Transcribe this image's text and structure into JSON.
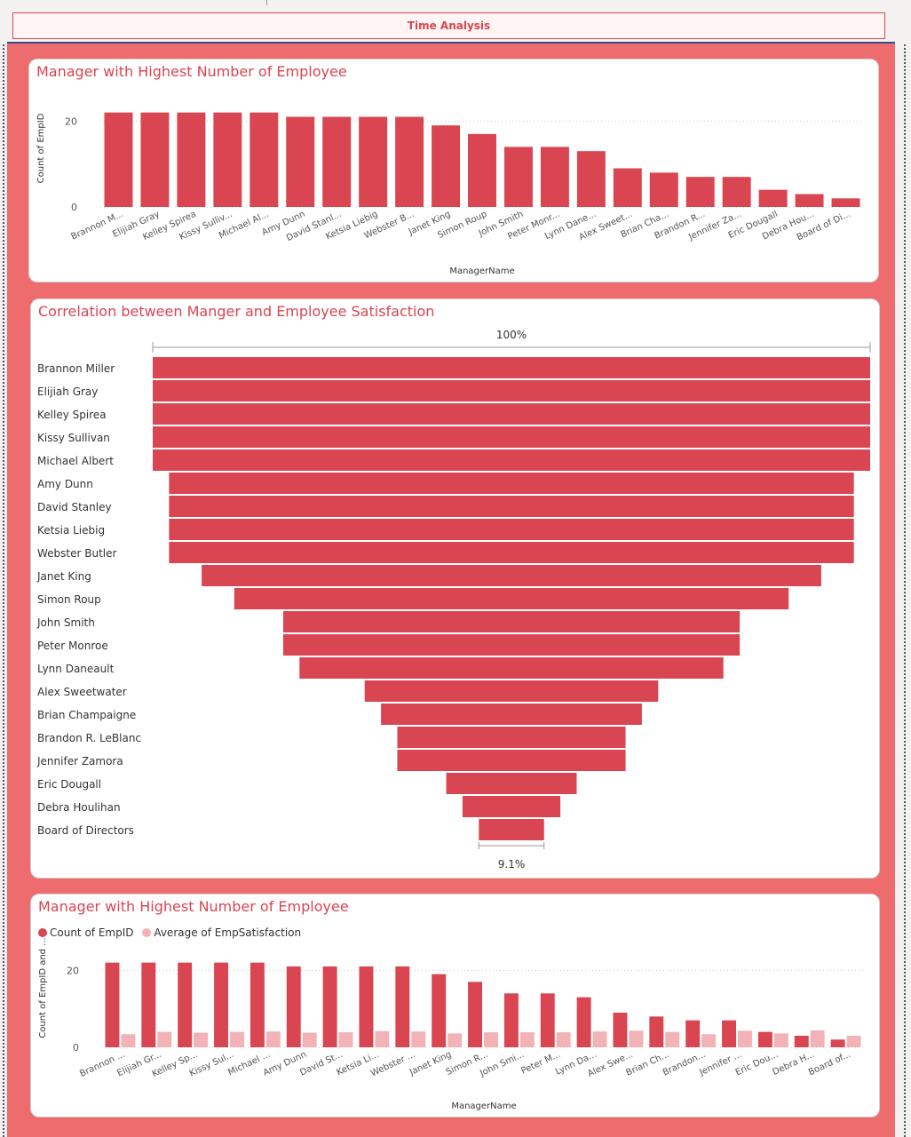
{
  "page": {
    "title": "Time Analysis"
  },
  "colors": {
    "primary": "#d94551",
    "secondary": "#f2b2b6",
    "accent": "#ee6b6e"
  },
  "chart_data": [
    {
      "type": "bar",
      "title": "Manager with Highest Number of Employee",
      "xlabel": "ManagerName",
      "ylabel": "Count of EmpID",
      "ylim": [
        0,
        24
      ],
      "yticks": [
        0,
        20
      ],
      "categories": [
        "Brannon M...",
        "Elijiah Gray",
        "Kelley Spirea",
        "Kissy Sulliv...",
        "Michael Al...",
        "Amy Dunn",
        "David Stanl...",
        "Ketsia Liebig",
        "Webster B...",
        "Janet King",
        "Simon Roup",
        "John Smith",
        "Peter Monr...",
        "Lynn Dane...",
        "Alex Sweet...",
        "Brian Cha...",
        "Brandon R...",
        "Jennifer Za...",
        "Eric Dougall",
        "Debra Hou...",
        "Board of Di..."
      ],
      "values": [
        22,
        22,
        22,
        22,
        22,
        21,
        21,
        21,
        21,
        19,
        17,
        14,
        14,
        13,
        9,
        8,
        7,
        7,
        4,
        3,
        2
      ],
      "grid": true
    },
    {
      "type": "funnel",
      "title": "Correlation between Manger and Employee Satisfaction",
      "top_label": "100%",
      "bottom_label": "9.1%",
      "categories": [
        "Brannon Miller",
        "Elijiah Gray",
        "Kelley Spirea",
        "Kissy Sullivan",
        "Michael Albert",
        "Amy Dunn",
        "David Stanley",
        "Ketsia Liebig",
        "Webster Butler",
        "Janet King",
        "Simon Roup",
        "John Smith",
        "Peter Monroe",
        "Lynn Daneault",
        "Alex Sweetwater",
        "Brian Champaigne",
        "Brandon R. LeBlanc",
        "Jennifer Zamora",
        "Eric Dougall",
        "Debra Houlihan",
        "Board of Directors"
      ],
      "values": [
        22,
        22,
        22,
        22,
        22,
        21,
        21,
        21,
        21,
        19,
        17,
        14,
        14,
        13,
        9,
        8,
        7,
        7,
        4,
        3,
        2
      ]
    },
    {
      "type": "bar",
      "title": "Manager with Highest Number of Employee",
      "xlabel": "ManagerName",
      "ylabel": "Count of EmpID and ...",
      "ylim": [
        0,
        24
      ],
      "yticks": [
        0,
        20
      ],
      "categories": [
        "Brannon ...",
        "Elijiah Gr...",
        "Kelley Sp...",
        "Kissy Sul...",
        "Michael ...",
        "Amy Dunn",
        "David St...",
        "Ketsia Li...",
        "Webster ...",
        "Janet King",
        "Simon R...",
        "John Smi...",
        "Peter M...",
        "Lynn Da...",
        "Alex Swe...",
        "Brian Ch...",
        "Brandon...",
        "Jennifer ...",
        "Eric Dou...",
        "Debra H...",
        "Board of..."
      ],
      "series": [
        {
          "name": "Count of EmpID",
          "values": [
            22,
            22,
            22,
            22,
            22,
            21,
            21,
            21,
            21,
            19,
            17,
            14,
            14,
            13,
            9,
            8,
            7,
            7,
            4,
            3,
            2
          ]
        },
        {
          "name": "Average of EmpSatisfaction",
          "values": [
            3.4,
            4.0,
            3.8,
            4.0,
            4.1,
            3.8,
            3.9,
            4.2,
            4.1,
            3.6,
            3.9,
            3.9,
            3.9,
            4.1,
            4.3,
            4.0,
            3.4,
            4.3,
            3.6,
            4.4,
            3.0
          ]
        }
      ],
      "legend": "top-left",
      "grid": true
    }
  ]
}
